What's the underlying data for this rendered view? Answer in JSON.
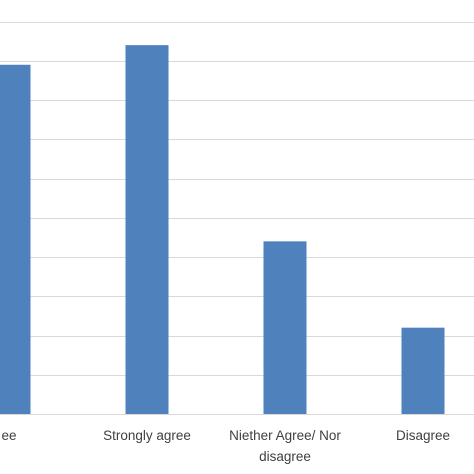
{
  "chart_data": {
    "type": "bar",
    "categories": [
      "Agree",
      "Strongly agree",
      "Niether Agree/ Nor disagree",
      "Disagree"
    ],
    "category_label_lines": [
      [
        "ee"
      ],
      [
        "Strongly agree"
      ],
      [
        "Niether Agree/ Nor",
        "disagree"
      ],
      [
        "Disagree"
      ]
    ],
    "values": [
      44.5,
      47,
      22,
      11
    ],
    "ylim": [
      0,
      52.5
    ],
    "ytick_step": 5,
    "grid": true,
    "legend": "none",
    "title": "",
    "xlabel": "",
    "ylabel": "",
    "colors": {
      "bar": "#4f81bd",
      "gridline": "#d9d9d9",
      "text": "#404040"
    }
  }
}
